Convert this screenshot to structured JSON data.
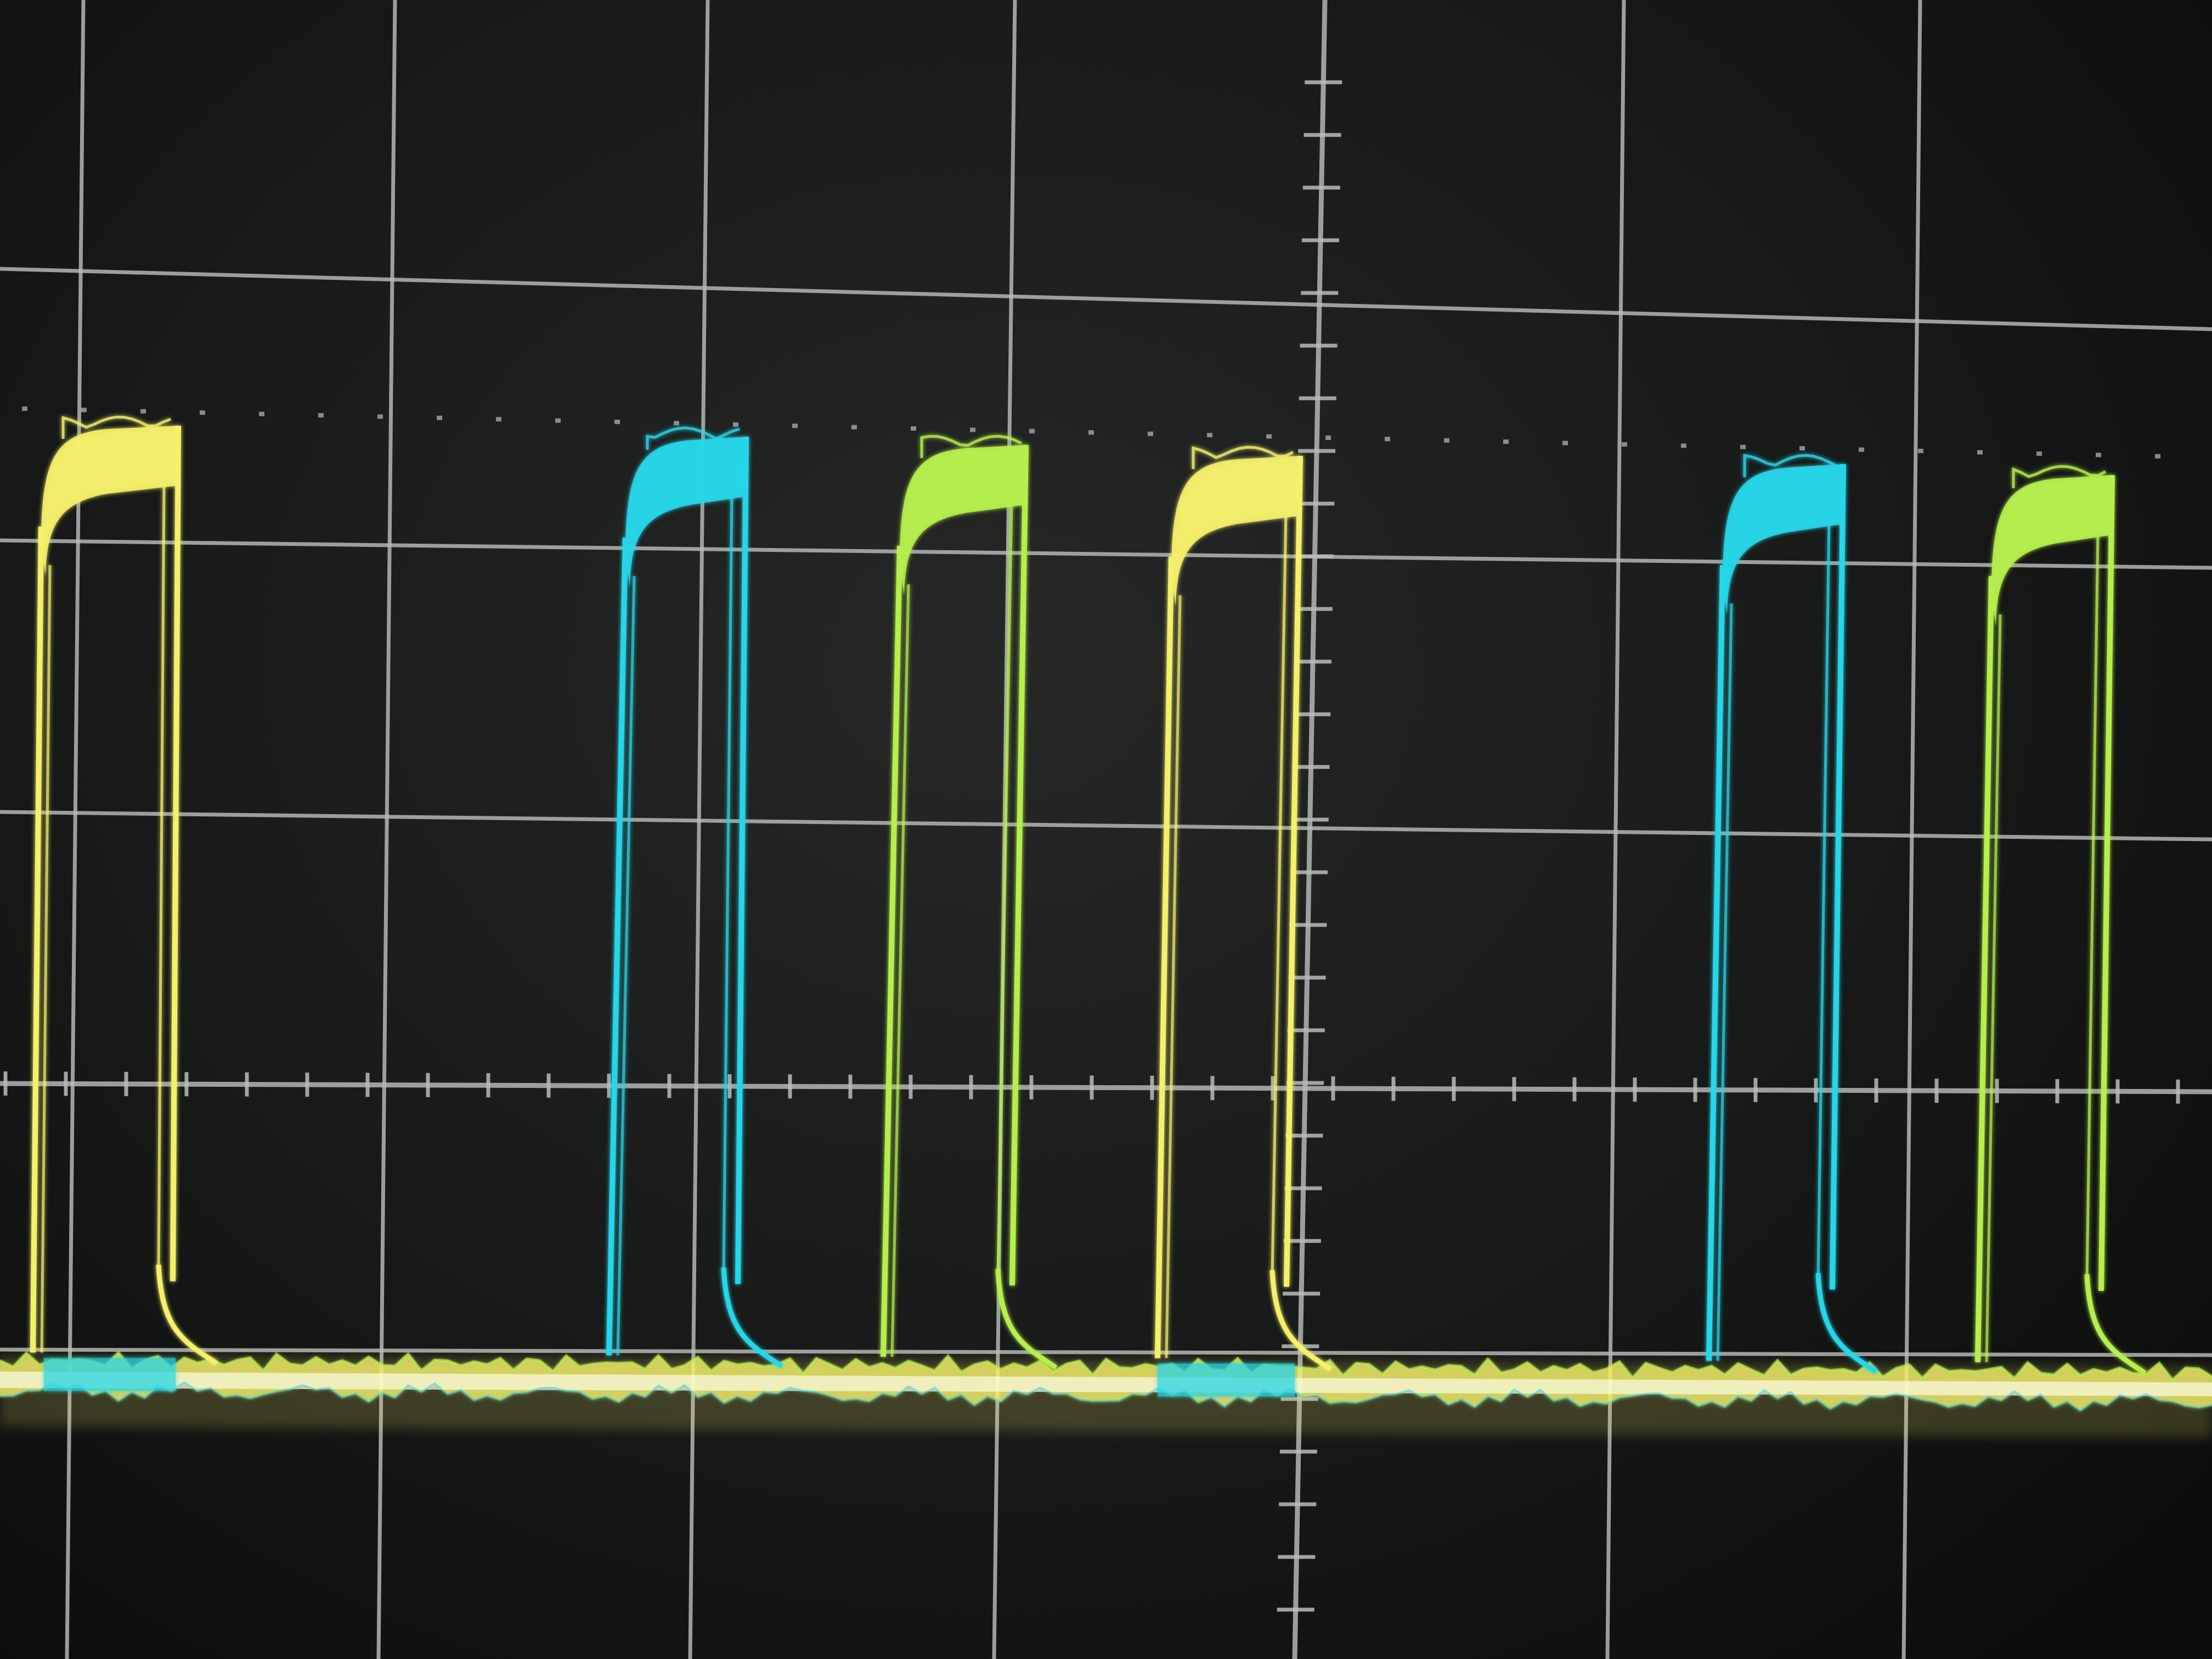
{
  "scene": {
    "subject": "oscilloscope-display-photo",
    "background_color": "#1c1e1d",
    "grid_color": "#b9bcbb",
    "trace_colors": {
      "yellow": "#f4f06a",
      "cyan": "#27d6e8",
      "green": "#b6ef4c"
    }
  },
  "traces": [
    {
      "name": "yellow",
      "pulse_order": [
        1,
        4
      ]
    },
    {
      "name": "cyan",
      "pulse_order": [
        2,
        5
      ]
    },
    {
      "name": "green",
      "pulse_order": [
        3,
        6
      ]
    }
  ]
}
